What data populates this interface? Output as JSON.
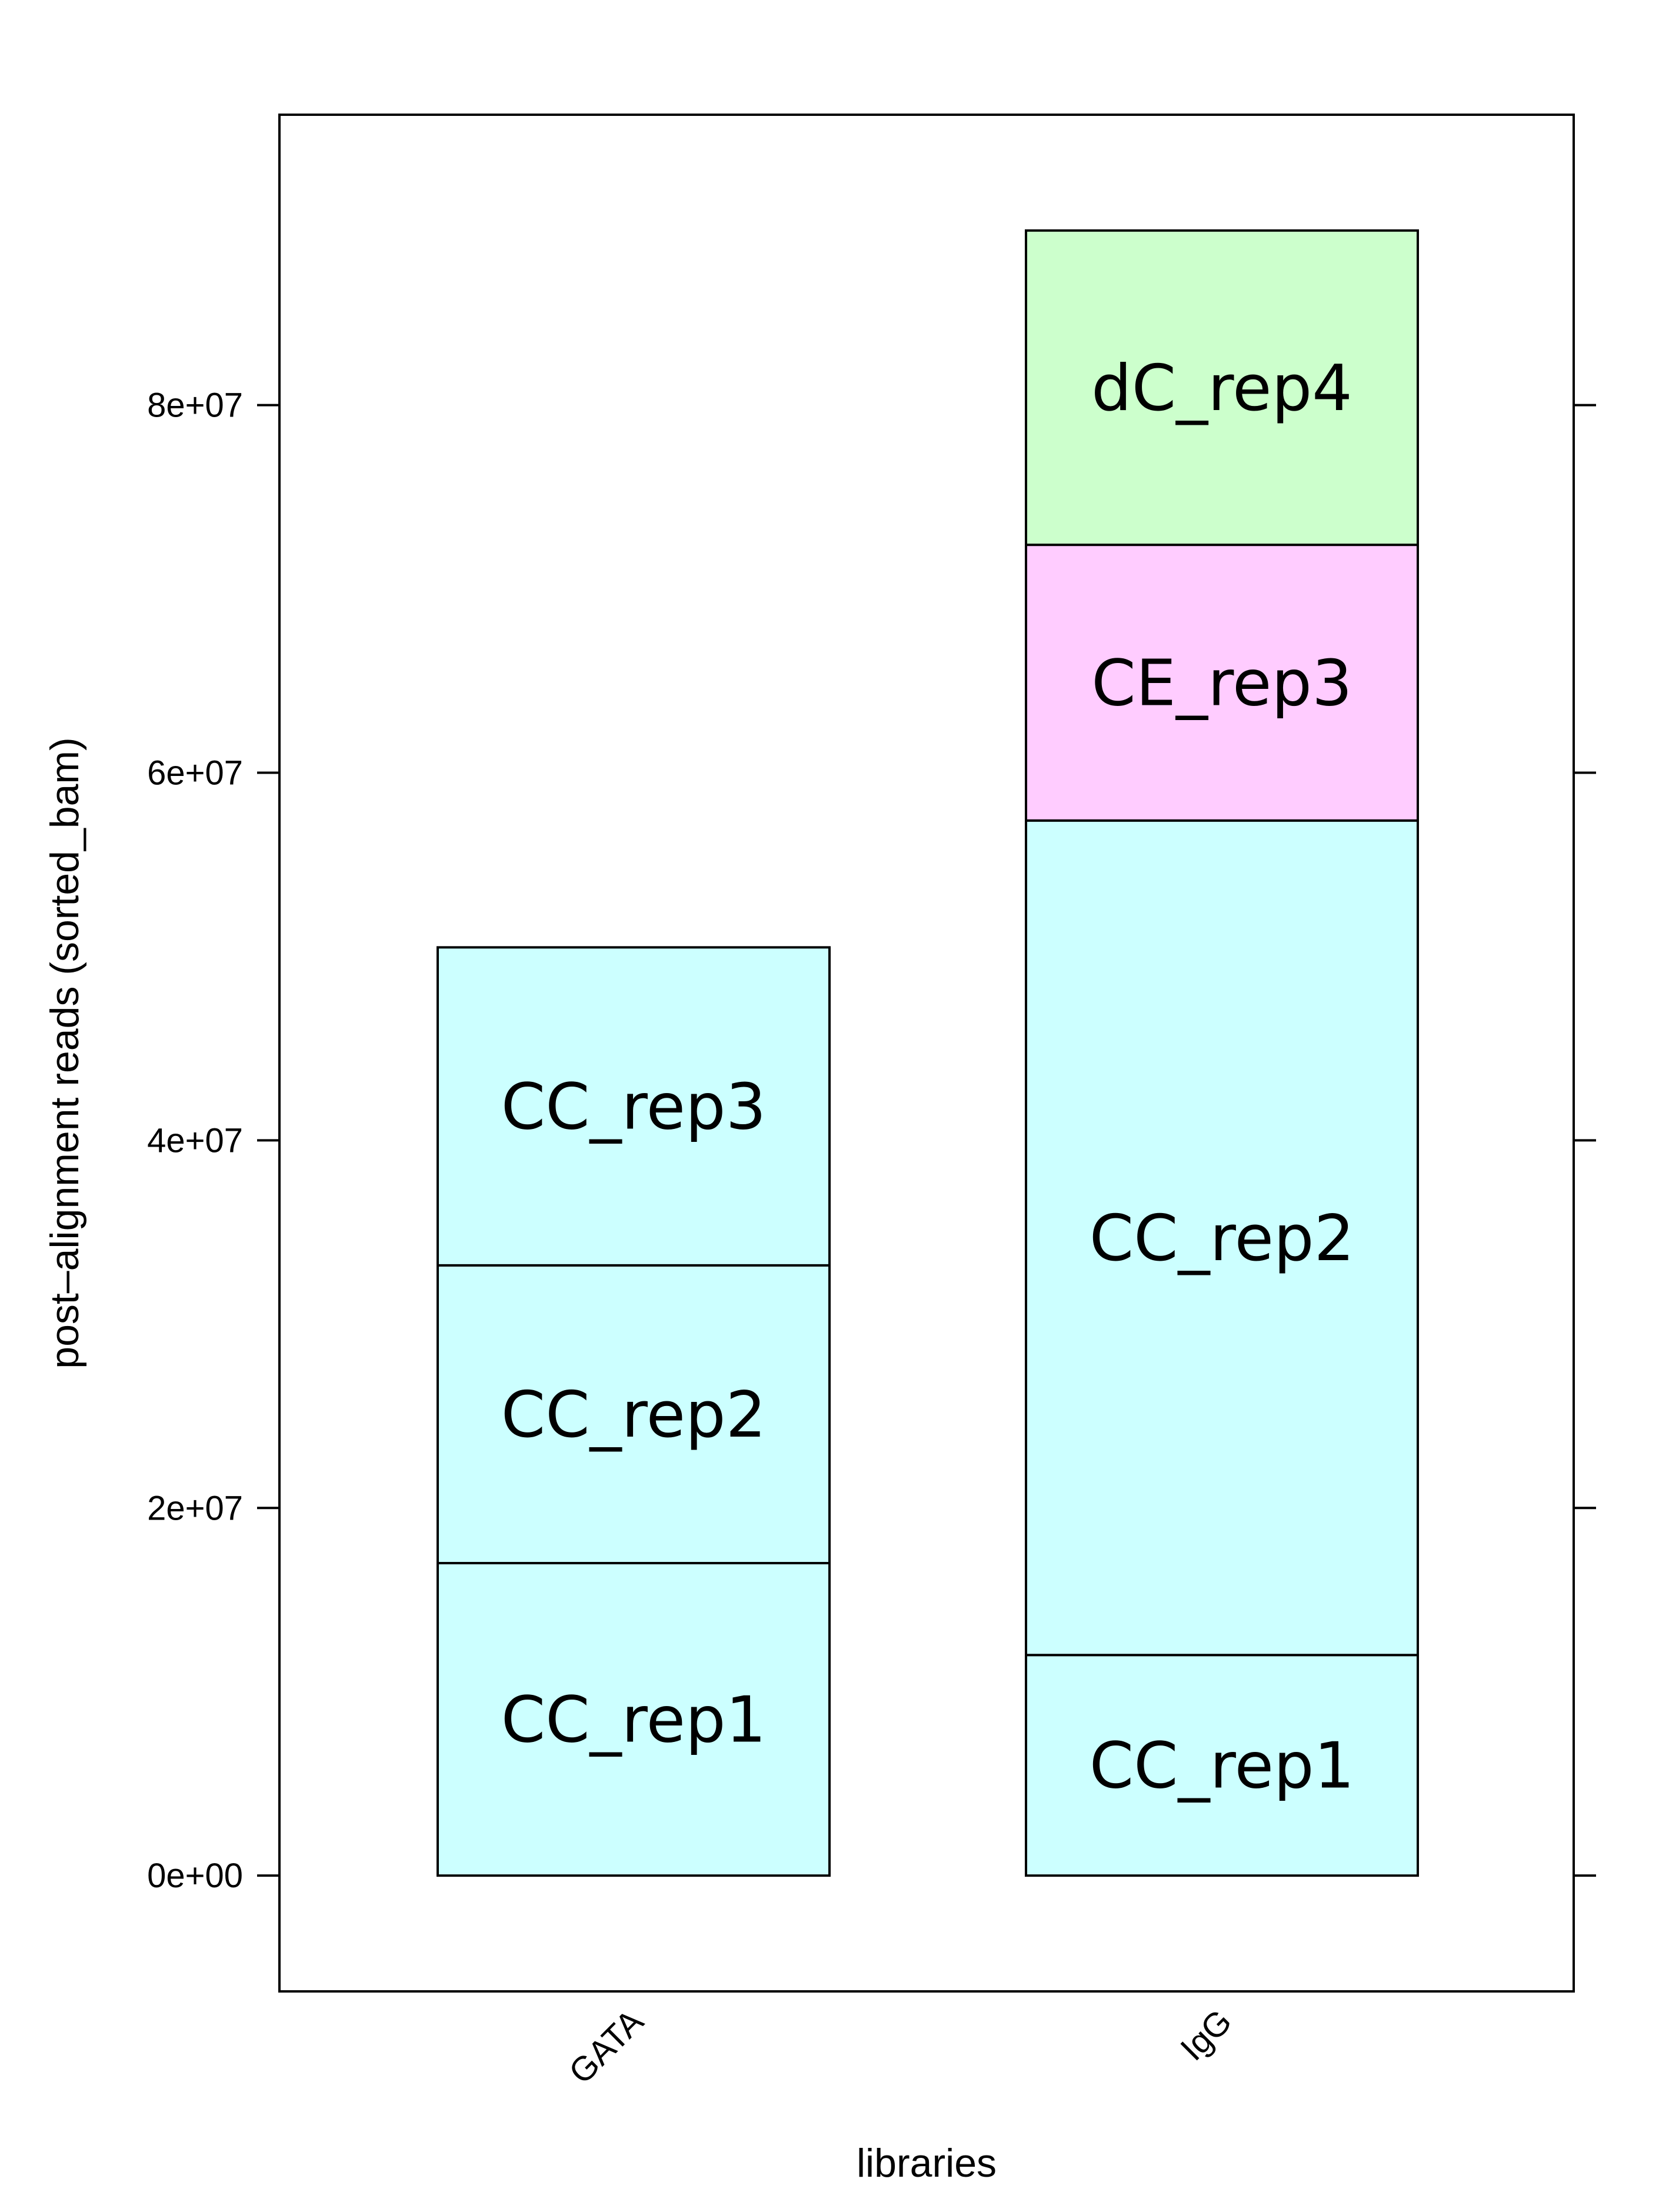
{
  "chart_data": {
    "type": "bar",
    "stacked": true,
    "categories": [
      "GATA",
      "IgG"
    ],
    "xlabel": "libraries",
    "ylabel": "post–alignment reads (sorted_bam)",
    "ylim": [
      -6300000,
      95800000
    ],
    "yticks": [
      0,
      20000000,
      40000000,
      60000000,
      80000000
    ],
    "ytick_labels": [
      "0e+00",
      "2e+07",
      "4e+07",
      "6e+07",
      "8e+07"
    ],
    "grid": false,
    "stacks": [
      {
        "category": "GATA",
        "segments": [
          {
            "label": "CC_rep1",
            "value": 17000000,
            "color": "#ccffff"
          },
          {
            "label": "CC_rep2",
            "value": 16200000,
            "color": "#ccffff"
          },
          {
            "label": "CC_rep3",
            "value": 17300000,
            "color": "#ccffff"
          }
        ]
      },
      {
        "category": "IgG",
        "segments": [
          {
            "label": "CC_rep1",
            "value": 12000000,
            "color": "#ccffff"
          },
          {
            "label": "CC_rep2",
            "value": 45400000,
            "color": "#ccffff"
          },
          {
            "label": "CE_rep3",
            "value": 15000000,
            "color": "#ffccff"
          },
          {
            "label": "dC_rep4",
            "value": 17100000,
            "color": "#ccffcc"
          }
        ]
      }
    ]
  }
}
